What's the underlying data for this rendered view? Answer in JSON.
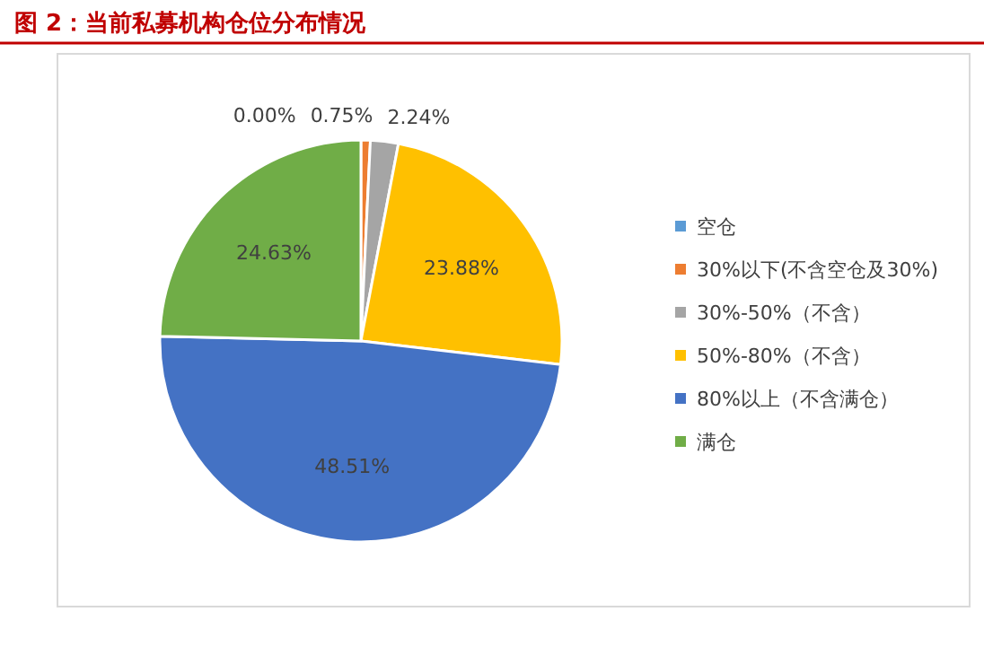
{
  "chart_data": {
    "type": "pie",
    "title": "图 2：当前私募机构仓位分布情况",
    "categories": [
      "空仓",
      "30%以下(不含空仓及30%)",
      "30%-50%（不含）",
      "50%-80%（不含）",
      "80%以上（不含满仓）",
      "满仓"
    ],
    "values": [
      0.0,
      0.75,
      2.24,
      23.88,
      48.51,
      24.63
    ],
    "value_labels": [
      "0.00%",
      "0.75%",
      "2.24%",
      "23.88%",
      "48.51%",
      "24.63%"
    ],
    "colors": [
      "#5b9bd5",
      "#ed7d31",
      "#a5a5a5",
      "#ffc000",
      "#4472c4",
      "#70ad47"
    ],
    "legend": "right"
  }
}
